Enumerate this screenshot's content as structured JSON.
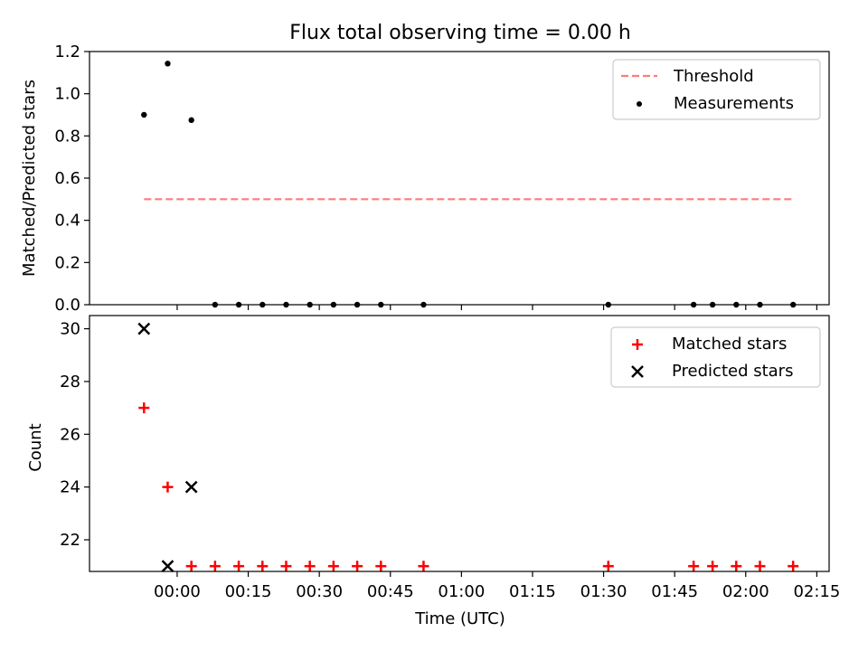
{
  "chart_data": [
    {
      "type": "line",
      "title": "Flux total observing time = 0.00 h",
      "xlabel": "",
      "ylabel": "Matched/Predicted stars",
      "ylim": [
        0,
        1.2
      ],
      "yticks": [
        "0.0",
        "0.2",
        "0.4",
        "0.6",
        "0.8",
        "1.0",
        "1.2"
      ],
      "legend_position": "top-right",
      "series": [
        {
          "name": "Threshold",
          "style": "dashed-line",
          "color": "#ff7b7b",
          "x": [
            "23:53",
            "02:10"
          ],
          "y": [
            0.5,
            0.5
          ]
        },
        {
          "name": "Measurements",
          "style": "dot",
          "color": "#000000",
          "x": [
            "23:53",
            "23:58",
            "00:03",
            "00:08",
            "00:13",
            "00:18",
            "00:23",
            "00:28",
            "00:33",
            "00:38",
            "00:43",
            "00:52",
            "01:31",
            "01:49",
            "01:53",
            "01:58",
            "02:03",
            "02:10"
          ],
          "y": [
            0.9,
            1.143,
            0.875,
            0,
            0,
            0,
            0,
            0,
            0,
            0,
            0,
            0,
            0,
            0,
            0,
            0,
            0,
            0
          ]
        }
      ]
    },
    {
      "type": "scatter",
      "xlabel": "Time (UTC)",
      "ylabel": "Count",
      "ylim": [
        20.8,
        30.5
      ],
      "yticks": [
        "22",
        "24",
        "26",
        "28",
        "30"
      ],
      "xticks": [
        "00:00",
        "00:15",
        "00:30",
        "00:45",
        "01:00",
        "01:15",
        "01:30",
        "01:45",
        "02:00",
        "02:15"
      ],
      "legend_position": "top-right",
      "series": [
        {
          "name": "Matched stars",
          "marker": "plus",
          "color": "#ff0000",
          "x": [
            "23:53",
            "23:58",
            "00:03",
            "00:08",
            "00:13",
            "00:18",
            "00:23",
            "00:28",
            "00:33",
            "00:38",
            "00:43",
            "00:52",
            "01:31",
            "01:49",
            "01:53",
            "01:58",
            "02:03",
            "02:10"
          ],
          "y": [
            27,
            24,
            21,
            21,
            21,
            21,
            21,
            21,
            21,
            21,
            21,
            21,
            21,
            21,
            21,
            21,
            21,
            21
          ]
        },
        {
          "name": "Predicted stars",
          "marker": "x",
          "color": "#000000",
          "x": [
            "23:53",
            "23:58",
            "00:03"
          ],
          "y": [
            30,
            21,
            24
          ]
        }
      ]
    }
  ]
}
